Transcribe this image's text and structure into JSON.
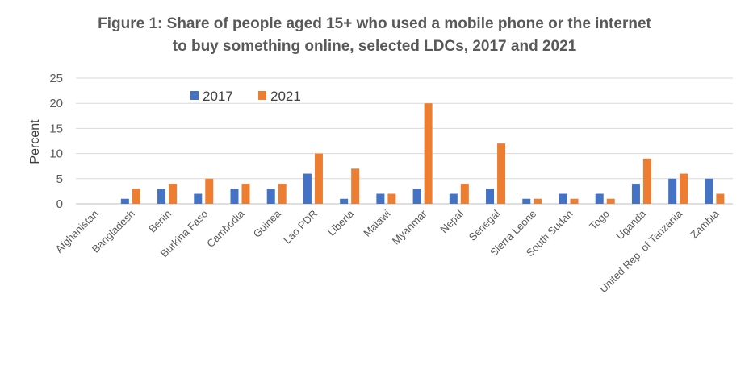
{
  "chart_data": {
    "type": "bar",
    "title_line1": "Figure 1: Share of people aged 15+ who used a mobile phone or the internet",
    "title_line2": "to buy something online, selected LDCs, 2017 and 2021",
    "ylabel": "Percent",
    "ylim": [
      0,
      25
    ],
    "yticks": [
      "0",
      "5",
      "10",
      "15",
      "20",
      "25"
    ],
    "grid": true,
    "legend_position": "top-left",
    "categories": [
      "Afghanistan",
      "Bangladesh",
      "Benin",
      "Burkina Faso",
      "Cambodia",
      "Guinea",
      "Lao PDR",
      "Liberia",
      "Malawi",
      "Myanmar",
      "Nepal",
      "Senegal",
      "Sierra Leone",
      "South Sudan",
      "Togo",
      "Uganda",
      "United Rep. of Tanzania",
      "Zambia"
    ],
    "series": [
      {
        "name": "2017",
        "color": "#4472C4",
        "values": [
          0,
          1,
          3,
          2,
          3,
          3,
          6,
          1,
          2,
          3,
          2,
          3,
          1,
          2,
          2,
          4,
          5,
          5
        ]
      },
      {
        "name": "2021",
        "color": "#ED7D31",
        "values": [
          0,
          3,
          4,
          5,
          4,
          4,
          10,
          7,
          2,
          20,
          4,
          12,
          1,
          1,
          1,
          9,
          6,
          2
        ]
      }
    ]
  }
}
